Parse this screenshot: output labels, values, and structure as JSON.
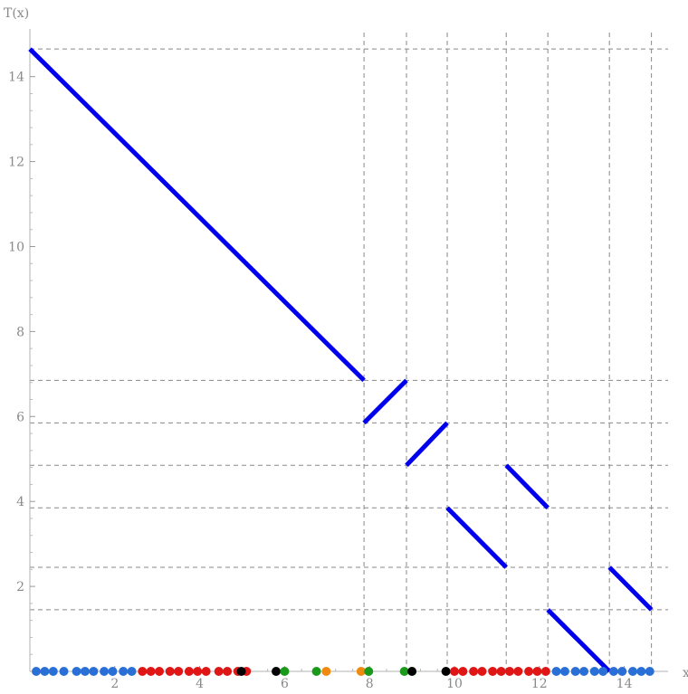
{
  "chart_data": {
    "type": "line",
    "ylabel": "T(x)",
    "xlabel": "x",
    "xlim": [
      0,
      14.75
    ],
    "ylim": [
      0,
      14.75
    ],
    "x_ticks": [
      2,
      4,
      6,
      8,
      10,
      12,
      14
    ],
    "y_ticks": [
      2,
      4,
      6,
      8,
      10,
      12,
      14
    ],
    "x_tick_labels": [
      "2",
      "4",
      "6",
      "8",
      "10",
      "12",
      "14"
    ],
    "y_tick_labels": [
      "2",
      "4",
      "6",
      "8",
      "10",
      "12",
      "14"
    ],
    "grid_x": [
      7.87,
      8.87,
      9.83,
      11.22,
      12.2,
      13.65,
      14.64
    ],
    "grid_y": [
      1.45,
      2.45,
      3.85,
      4.85,
      5.85,
      6.85,
      14.65
    ],
    "series_color": "#0000ee",
    "segments": [
      {
        "x": [
          0,
          7.87
        ],
        "y": [
          14.65,
          6.85
        ]
      },
      {
        "x": [
          7.87,
          8.87
        ],
        "y": [
          5.85,
          6.85
        ]
      },
      {
        "x": [
          8.87,
          9.83
        ],
        "y": [
          4.85,
          5.85
        ]
      },
      {
        "x": [
          9.83,
          11.22
        ],
        "y": [
          3.85,
          2.45
        ]
      },
      {
        "x": [
          11.22,
          12.2
        ],
        "y": [
          4.85,
          3.85
        ]
      },
      {
        "x": [
          12.2,
          13.65
        ],
        "y": [
          1.45,
          0
        ]
      },
      {
        "x": [
          13.65,
          14.64
        ],
        "y": [
          2.45,
          1.45
        ]
      }
    ],
    "point_colors": {
      "blue": "#2a6fd6",
      "red": "#e01515",
      "black": "#000000",
      "green": "#1a9a1a",
      "orange": "#ee8a10"
    },
    "points": [
      {
        "x": 0.15,
        "color": "blue"
      },
      {
        "x": 0.35,
        "color": "blue"
      },
      {
        "x": 0.55,
        "color": "blue"
      },
      {
        "x": 0.8,
        "color": "blue"
      },
      {
        "x": 1.1,
        "color": "blue"
      },
      {
        "x": 1.3,
        "color": "blue"
      },
      {
        "x": 1.5,
        "color": "blue"
      },
      {
        "x": 1.75,
        "color": "blue"
      },
      {
        "x": 1.95,
        "color": "blue"
      },
      {
        "x": 2.2,
        "color": "blue"
      },
      {
        "x": 2.4,
        "color": "blue"
      },
      {
        "x": 2.65,
        "color": "red"
      },
      {
        "x": 2.85,
        "color": "red"
      },
      {
        "x": 3.05,
        "color": "red"
      },
      {
        "x": 3.3,
        "color": "red"
      },
      {
        "x": 3.5,
        "color": "red"
      },
      {
        "x": 3.75,
        "color": "red"
      },
      {
        "x": 3.95,
        "color": "red"
      },
      {
        "x": 4.15,
        "color": "red"
      },
      {
        "x": 4.45,
        "color": "red"
      },
      {
        "x": 4.65,
        "color": "red"
      },
      {
        "x": 4.9,
        "color": "red"
      },
      {
        "x": 5.1,
        "color": "red"
      },
      {
        "x": 4.98,
        "color": "black"
      },
      {
        "x": 5.8,
        "color": "black"
      },
      {
        "x": 6.0,
        "color": "green"
      },
      {
        "x": 6.75,
        "color": "green"
      },
      {
        "x": 6.98,
        "color": "orange"
      },
      {
        "x": 7.8,
        "color": "orange"
      },
      {
        "x": 7.98,
        "color": "green"
      },
      {
        "x": 8.82,
        "color": "green"
      },
      {
        "x": 9.0,
        "color": "black"
      },
      {
        "x": 9.8,
        "color": "black"
      },
      {
        "x": 10.0,
        "color": "red"
      },
      {
        "x": 10.2,
        "color": "red"
      },
      {
        "x": 10.45,
        "color": "red"
      },
      {
        "x": 10.65,
        "color": "red"
      },
      {
        "x": 10.9,
        "color": "red"
      },
      {
        "x": 11.1,
        "color": "red"
      },
      {
        "x": 11.3,
        "color": "red"
      },
      {
        "x": 11.5,
        "color": "red"
      },
      {
        "x": 11.75,
        "color": "red"
      },
      {
        "x": 11.95,
        "color": "red"
      },
      {
        "x": 12.15,
        "color": "red"
      },
      {
        "x": 12.4,
        "color": "blue"
      },
      {
        "x": 12.6,
        "color": "blue"
      },
      {
        "x": 12.85,
        "color": "blue"
      },
      {
        "x": 13.05,
        "color": "blue"
      },
      {
        "x": 13.3,
        "color": "blue"
      },
      {
        "x": 13.5,
        "color": "blue"
      },
      {
        "x": 13.75,
        "color": "blue"
      },
      {
        "x": 13.95,
        "color": "blue"
      },
      {
        "x": 14.2,
        "color": "blue"
      },
      {
        "x": 14.4,
        "color": "blue"
      },
      {
        "x": 14.6,
        "color": "blue"
      }
    ]
  }
}
